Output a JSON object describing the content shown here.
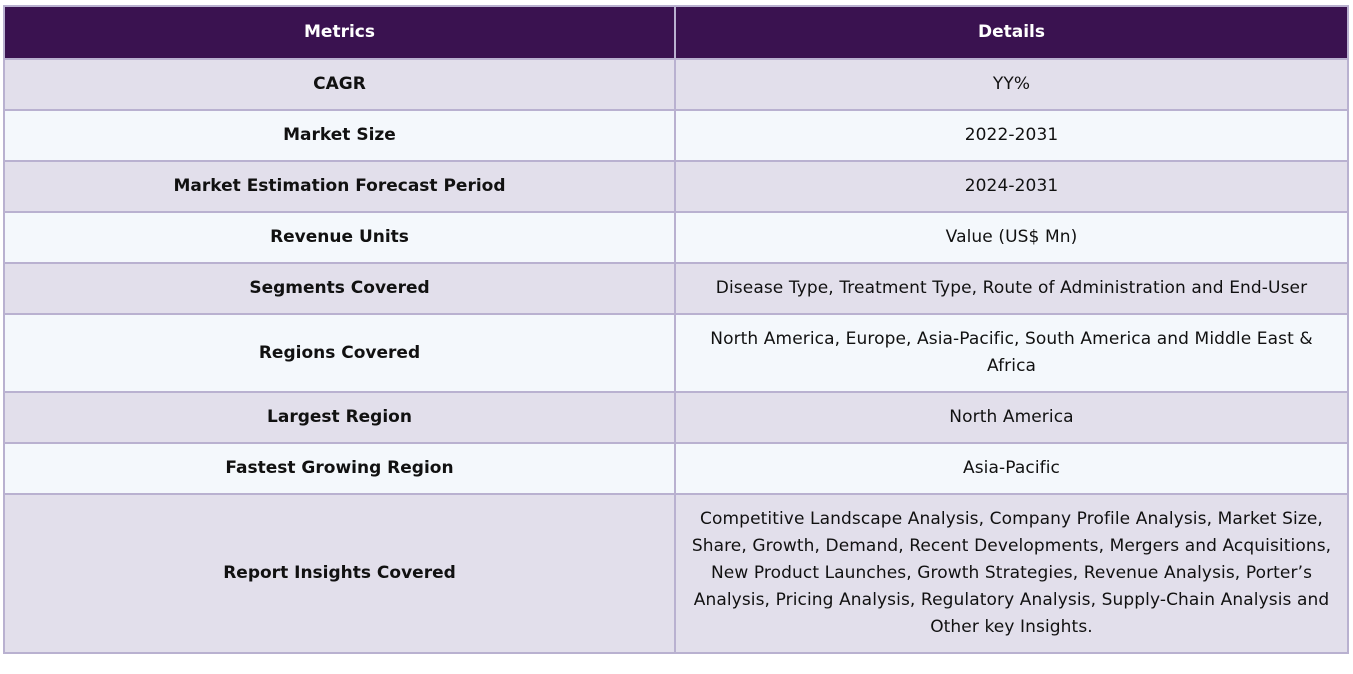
{
  "table": {
    "headers": {
      "metrics": "Metrics",
      "details": "Details"
    },
    "rows": [
      {
        "metric": "CAGR",
        "detail": "YY%"
      },
      {
        "metric": "Market Size",
        "detail": "2022-2031"
      },
      {
        "metric": "Market Estimation Forecast Period",
        "detail": "2024-2031"
      },
      {
        "metric": "Revenue Units",
        "detail": "Value (US$ Mn)"
      },
      {
        "metric": "Segments Covered",
        "detail": "Disease Type, Treatment Type, Route of Administration and End-User"
      },
      {
        "metric": "Regions Covered",
        "detail": "North America, Europe, Asia-Pacific, South America and Middle East & Africa"
      },
      {
        "metric": "Largest Region",
        "detail": "North America"
      },
      {
        "metric": "Fastest Growing Region",
        "detail": "Asia-Pacific"
      },
      {
        "metric": "Report Insights Covered",
        "detail": "Competitive Landscape Analysis, Company Profile Analysis, Market Size, Share, Growth, Demand, Recent Developments, Mergers and Acquisitions, New Product Launches, Growth Strategies, Revenue Analysis, Porter’s Analysis, Pricing Analysis, Regulatory Analysis, Supply-Chain Analysis and Other key Insights."
      }
    ]
  },
  "colors": {
    "header_bg": "#3a1250",
    "row_odd_bg": "#e2dfeb",
    "row_even_bg": "#f4f8fc",
    "border": "#b9b1d0"
  }
}
